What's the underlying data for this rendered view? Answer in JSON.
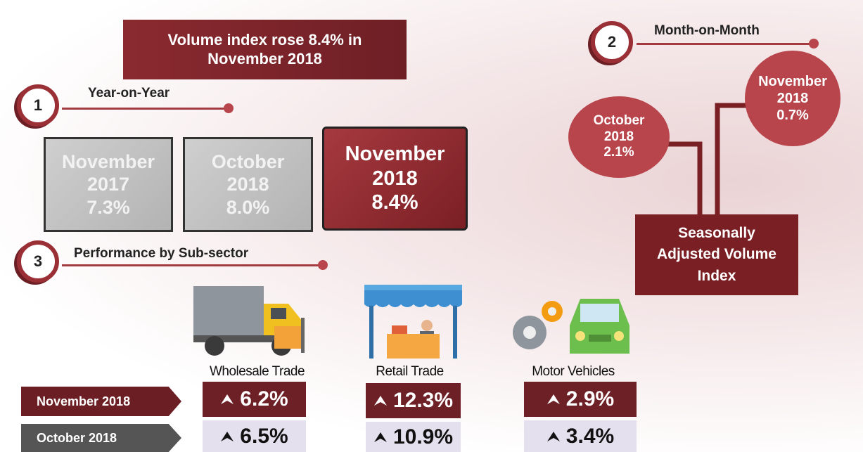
{
  "headline": "Volume index rose 8.4% in November 2018",
  "year_on_year": {
    "number": 1,
    "title": "Year-on-Year",
    "boxes": [
      {
        "period": "November",
        "year": "2017",
        "value": "7.3%"
      },
      {
        "period": "October",
        "year": "2018",
        "value": "8.0%"
      },
      {
        "period": "November",
        "year": "2018",
        "value": "8.4%"
      }
    ]
  },
  "month_on_month": {
    "number": 2,
    "title": "Month-on-Month",
    "bubbles": [
      {
        "period": "October",
        "year": "2018",
        "value": "2.1%"
      },
      {
        "period": "November",
        "year": "2018",
        "value": "0.7%"
      }
    ],
    "label": "Seasonally Adjusted Volume Index"
  },
  "sub_sector": {
    "number": 3,
    "title": "Performance by Sub-sector",
    "sectors": [
      "Wholesale Trade",
      "Retail Trade",
      "Motor Vehicles"
    ],
    "rows": [
      {
        "label": "November 2018",
        "values": [
          "6.2%",
          "12.3%",
          "2.9%"
        ]
      },
      {
        "label": "October 2018",
        "values": [
          "6.5%",
          "10.9%",
          "3.4%"
        ]
      }
    ]
  }
}
